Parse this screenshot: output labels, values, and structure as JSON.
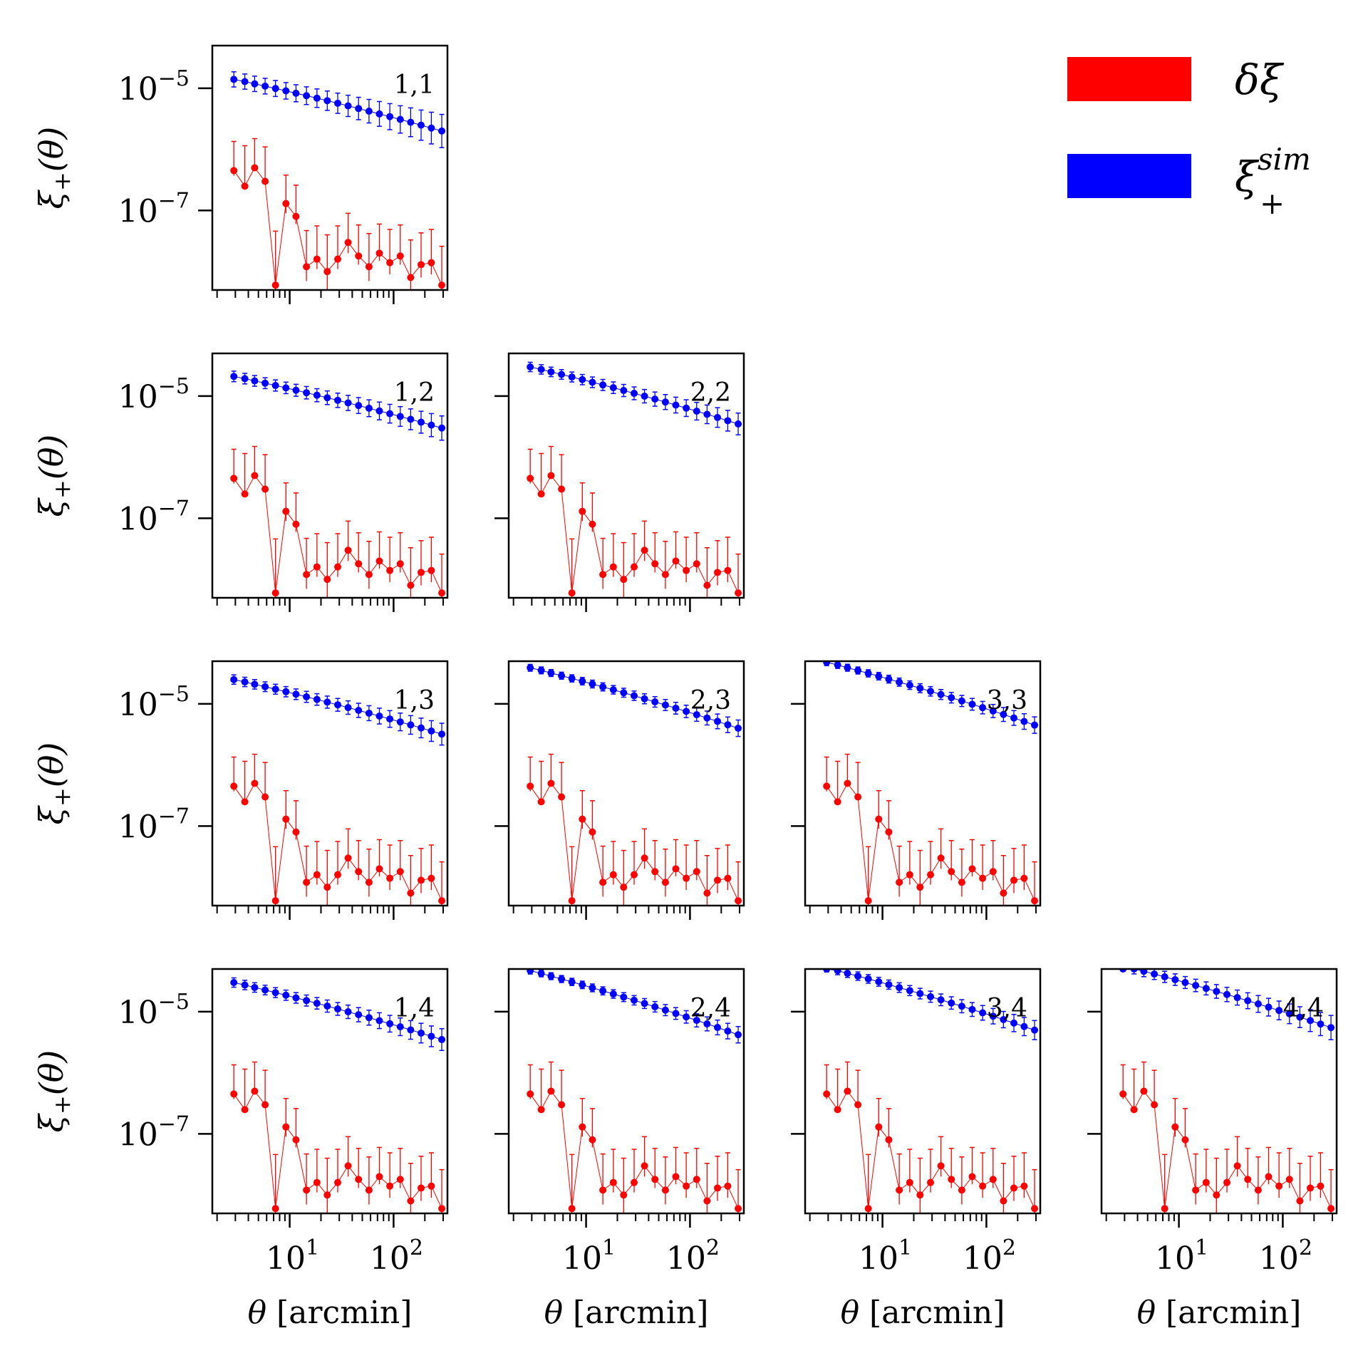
{
  "figure": {
    "y_axis_label_main": "ξ",
    "y_axis_label_sub": "+",
    "y_axis_label_arg": "(θ)",
    "x_axis_label_symbol": "θ",
    "x_axis_label_unit": "[arcmin]",
    "x_tick_labels": [
      {
        "base": "10",
        "exp": "1"
      },
      {
        "base": "10",
        "exp": "2"
      }
    ],
    "y_tick_labels": [
      {
        "base": "10",
        "exp": "−5"
      },
      {
        "base": "10",
        "exp": "−7"
      }
    ],
    "legend": {
      "placement": "top-right",
      "entries": [
        {
          "main": "δξ",
          "sup": "",
          "sub": "",
          "color": "#ff0000"
        },
        {
          "main": "ξ",
          "sup": "sim",
          "sub": "+",
          "color": "#0000ff"
        }
      ]
    },
    "colors": {
      "delta_xi": "#ff0000",
      "xi_sim": "#0000ff"
    }
  },
  "chart_data": {
    "type": "scatter",
    "layout": "lower-triangle 4x4 grid of tomographic bin pairs",
    "x_scale": "log",
    "y_scale": "log",
    "xlabel": "θ [arcmin]",
    "ylabel": "ξ+(θ)",
    "xlim": [
      1.8,
      330
    ],
    "ylim": [
      5e-09,
      5e-05
    ],
    "grid": false,
    "theta": [
      2.9,
      3.7,
      4.6,
      5.8,
      7.3,
      9.2,
      11.5,
      14.5,
      18.3,
      23,
      29,
      36.5,
      46,
      58,
      73,
      92,
      116,
      146,
      184,
      231,
      291
    ],
    "delta_xi": {
      "name": "δξ",
      "values": [
        4.5e-07,
        2.5e-07,
        5e-07,
        3e-07,
        6e-09,
        1.3e-07,
        8e-08,
        1.2e-08,
        1.6e-08,
        1e-08,
        1.6e-08,
        3e-08,
        1.8e-08,
        1.2e-08,
        2e-08,
        1.4e-08,
        1.8e-08,
        8e-09,
        1.3e-08,
        1.4e-08,
        6e-09
      ],
      "err_upper": [
        9e-07,
        9e-07,
        1e-06,
        8e-07,
        4e-08,
        2.5e-07,
        1.8e-07,
        3.5e-08,
        4e-08,
        3e-08,
        4e-08,
        6e-08,
        4e-08,
        3e-08,
        4e-08,
        3.5e-08,
        4e-08,
        2.5e-08,
        3e-08,
        3.5e-08,
        2e-08
      ],
      "err_lower": [
        8e-08,
        5e-09,
        5e-09,
        5e-09,
        5e-09,
        4e-08,
        2e-08,
        5e-09,
        5e-09,
        5e-09,
        5e-09,
        1e-08,
        5e-09,
        5e-09,
        5e-09,
        5e-09,
        5e-09,
        5e-09,
        5e-09,
        5e-09,
        5e-09
      ]
    },
    "panels": [
      {
        "label": "1,1",
        "row": 1,
        "col": 1,
        "xi_start": 1.4e-05,
        "xi_end": 2e-06,
        "rel_err": 0.6
      },
      {
        "label": "1,2",
        "row": 2,
        "col": 1,
        "xi_start": 2.1e-05,
        "xi_end": 3e-06,
        "rel_err": 0.4
      },
      {
        "label": "2,2",
        "row": 2,
        "col": 2,
        "xi_start": 3e-05,
        "xi_end": 3.5e-06,
        "rel_err": 0.35
      },
      {
        "label": "1,3",
        "row": 3,
        "col": 1,
        "xi_start": 2.5e-05,
        "xi_end": 3.2e-06,
        "rel_err": 0.35
      },
      {
        "label": "2,3",
        "row": 3,
        "col": 2,
        "xi_start": 3.9e-05,
        "xi_end": 4e-06,
        "rel_err": 0.25
      },
      {
        "label": "3,3",
        "row": 3,
        "col": 3,
        "xi_start": 4.8e-05,
        "xi_end": 4.5e-06,
        "rel_err": 0.25
      },
      {
        "label": "1,4",
        "row": 4,
        "col": 1,
        "xi_start": 3e-05,
        "xi_end": 3.5e-06,
        "rel_err": 0.35
      },
      {
        "label": "2,4",
        "row": 4,
        "col": 2,
        "xi_start": 4.7e-05,
        "xi_end": 4.2e-06,
        "rel_err": 0.25
      },
      {
        "label": "3,4",
        "row": 4,
        "col": 3,
        "xi_start": 5.2e-05,
        "xi_end": 5e-06,
        "rel_err": 0.3
      },
      {
        "label": "4,4",
        "row": 4,
        "col": 4,
        "xi_start": 5.6e-05,
        "xi_end": 5.5e-06,
        "rel_err": 0.4
      }
    ]
  }
}
